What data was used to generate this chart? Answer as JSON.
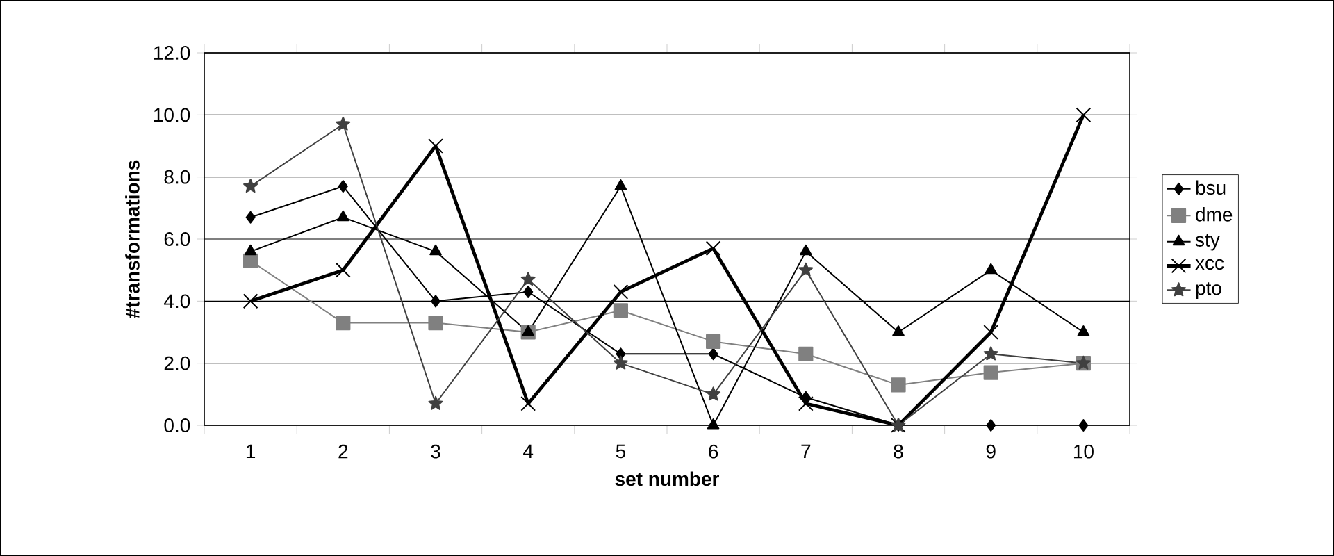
{
  "chart_data": {
    "type": "line",
    "xlabel": "set number",
    "ylabel": "#transformations",
    "categories": [
      "1",
      "2",
      "3",
      "4",
      "5",
      "6",
      "7",
      "8",
      "9",
      "10"
    ],
    "series": [
      {
        "name": "bsu",
        "color": "#000000",
        "marker": "diamond",
        "values": [
          6.7,
          7.7,
          4.0,
          4.3,
          2.3,
          2.3,
          0.9,
          0,
          0,
          0
        ]
      },
      {
        "name": "dme",
        "color": "#808080",
        "marker": "square",
        "values": [
          5.3,
          3.3,
          3.3,
          3.0,
          3.7,
          2.7,
          2.3,
          1.3,
          1.7,
          2.0
        ]
      },
      {
        "name": "sty",
        "color": "#000000",
        "marker": "triangle",
        "values": [
          5.6,
          6.7,
          5.6,
          3.0,
          7.7,
          0,
          5.6,
          3.0,
          5.0,
          3.0
        ]
      },
      {
        "name": "xcc",
        "color": "#000000",
        "marker": "cross",
        "values": [
          4.0,
          5.0,
          9.0,
          0.7,
          4.3,
          5.7,
          0.7,
          0,
          3.0,
          10.0
        ]
      },
      {
        "name": "pto",
        "color": "#404040",
        "marker": "star",
        "values": [
          7.7,
          9.7,
          0.7,
          4.7,
          2.0,
          1.0,
          5.0,
          0,
          2.3,
          2.0
        ]
      }
    ],
    "ylim": [
      0,
      12
    ],
    "yticks": [
      {
        "value": 0,
        "label": "0.0"
      },
      {
        "value": 2,
        "label": "2.0"
      },
      {
        "value": 4,
        "label": "4.0"
      },
      {
        "value": 6,
        "label": "6.0"
      },
      {
        "value": 8,
        "label": "8.0"
      },
      {
        "value": 10,
        "label": "10.0"
      },
      {
        "value": 12,
        "label": "12.0"
      }
    ],
    "grid": "y",
    "legend": "right",
    "line_style": "solid"
  }
}
